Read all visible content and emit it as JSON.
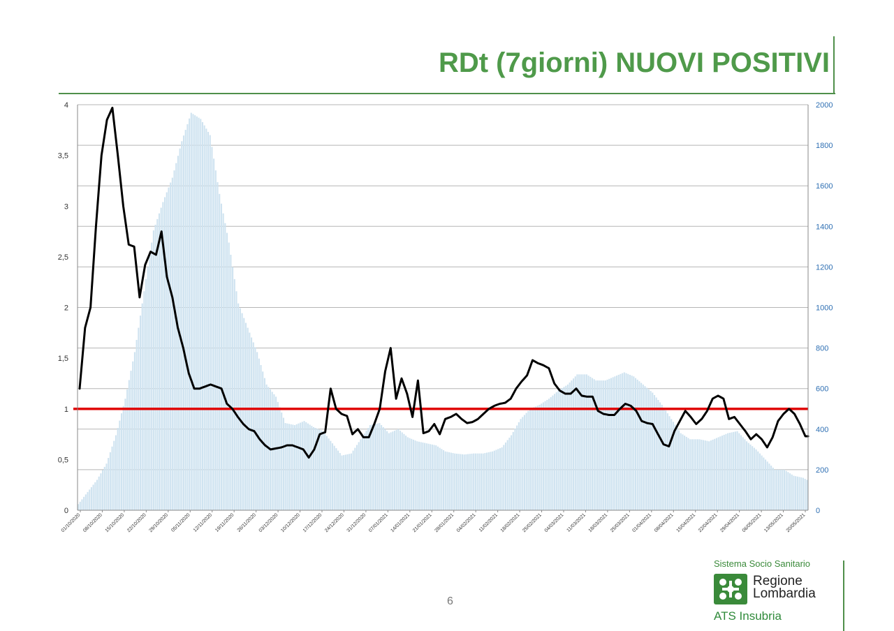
{
  "title": "RDt (7giorni) NUOVI POSITIVI",
  "page_number": "6",
  "logo": {
    "org": "Sistema Socio Sanitario",
    "region_line1": "Regione",
    "region_line2": "Lombardia",
    "ats": "ATS Insubria",
    "mark_color": "#3a8a3a"
  },
  "chart_data": {
    "type": "bar+line",
    "title": "",
    "grid": true,
    "left_axis": {
      "ylim": [
        0,
        4
      ],
      "ticks": [
        "0",
        "0,5",
        "1",
        "1,5",
        "2",
        "2,5",
        "3",
        "3,5",
        "4"
      ]
    },
    "right_axis": {
      "ylim": [
        0,
        2000
      ],
      "ticks": [
        "0",
        "200",
        "400",
        "600",
        "800",
        "1000",
        "1200",
        "1400",
        "1600",
        "1800",
        "2000"
      ]
    },
    "x_tick_labels": [
      "01/10/2020",
      "08/10/2020",
      "15/10/2020",
      "22/10/2020",
      "29/10/2020",
      "05/11/2020",
      "12/11/2020",
      "19/11/2020",
      "26/11/2020",
      "03/12/2020",
      "10/12/2020",
      "17/12/2020",
      "24/12/2020",
      "31/12/2020",
      "07/01/2021",
      "14/01/2021",
      "21/01/2021",
      "28/01/2021",
      "04/02/2021",
      "11/02/2021",
      "18/02/2021",
      "25/02/2021",
      "04/03/2021",
      "11/03/2021",
      "18/03/2021",
      "25/03/2021",
      "01/04/2021",
      "08/04/2021",
      "15/04/2021",
      "22/04/2021",
      "29/04/2021",
      "06/05/2021",
      "13/05/2021",
      "20/05/2021"
    ],
    "reference_line": {
      "value": 1,
      "axis": "left",
      "color": "#e00000"
    },
    "bar_series": {
      "axis": "right",
      "color": "#cfe3f0",
      "anchors": [
        [
          0,
          30
        ],
        [
          5,
          90
        ],
        [
          10,
          150
        ],
        [
          15,
          230
        ],
        [
          20,
          370
        ],
        [
          25,
          550
        ],
        [
          30,
          780
        ],
        [
          35,
          1080
        ],
        [
          40,
          1380
        ],
        [
          45,
          1520
        ],
        [
          50,
          1640
        ],
        [
          55,
          1820
        ],
        [
          60,
          1960
        ],
        [
          65,
          1930
        ],
        [
          70,
          1850
        ],
        [
          75,
          1560
        ],
        [
          80,
          1320
        ],
        [
          85,
          1020
        ],
        [
          90,
          900
        ],
        [
          95,
          780
        ],
        [
          100,
          620
        ],
        [
          105,
          560
        ],
        [
          110,
          430
        ],
        [
          115,
          420
        ],
        [
          120,
          440
        ],
        [
          125,
          410
        ],
        [
          130,
          390
        ],
        [
          135,
          330
        ],
        [
          140,
          270
        ],
        [
          145,
          280
        ],
        [
          150,
          350
        ],
        [
          155,
          420
        ],
        [
          160,
          430
        ],
        [
          165,
          380
        ],
        [
          170,
          400
        ],
        [
          175,
          360
        ],
        [
          180,
          340
        ],
        [
          185,
          330
        ],
        [
          190,
          320
        ],
        [
          195,
          290
        ],
        [
          200,
          280
        ],
        [
          205,
          275
        ],
        [
          210,
          280
        ],
        [
          215,
          280
        ],
        [
          220,
          290
        ],
        [
          225,
          310
        ],
        [
          230,
          370
        ],
        [
          235,
          450
        ],
        [
          240,
          500
        ],
        [
          245,
          520
        ],
        [
          250,
          550
        ],
        [
          255,
          590
        ],
        [
          260,
          620
        ],
        [
          265,
          670
        ],
        [
          270,
          670
        ],
        [
          275,
          640
        ],
        [
          280,
          640
        ],
        [
          285,
          660
        ],
        [
          290,
          680
        ],
        [
          295,
          660
        ],
        [
          300,
          620
        ],
        [
          305,
          580
        ],
        [
          310,
          520
        ],
        [
          315,
          450
        ],
        [
          320,
          380
        ],
        [
          325,
          350
        ],
        [
          330,
          350
        ],
        [
          335,
          340
        ],
        [
          340,
          360
        ],
        [
          345,
          380
        ],
        [
          350,
          390
        ],
        [
          355,
          340
        ],
        [
          360,
          300
        ],
        [
          365,
          250
        ],
        [
          370,
          200
        ],
        [
          375,
          200
        ],
        [
          380,
          170
        ],
        [
          385,
          160
        ],
        [
          387,
          150
        ]
      ]
    },
    "line_series": {
      "axis": "left",
      "color": "#000000",
      "anchors": [
        [
          0,
          1.2
        ],
        [
          2,
          1.8
        ],
        [
          4,
          2.0
        ],
        [
          6,
          2.8
        ],
        [
          8,
          3.5
        ],
        [
          10,
          3.85
        ],
        [
          12,
          3.97
        ],
        [
          14,
          3.5
        ],
        [
          16,
          3.0
        ],
        [
          18,
          2.62
        ],
        [
          20,
          2.6
        ],
        [
          22,
          2.1
        ],
        [
          24,
          2.42
        ],
        [
          26,
          2.55
        ],
        [
          28,
          2.52
        ],
        [
          30,
          2.75
        ],
        [
          32,
          2.3
        ],
        [
          34,
          2.1
        ],
        [
          36,
          1.8
        ],
        [
          38,
          1.6
        ],
        [
          40,
          1.35
        ],
        [
          42,
          1.2
        ],
        [
          44,
          1.2
        ],
        [
          46,
          1.22
        ],
        [
          48,
          1.24
        ],
        [
          50,
          1.22
        ],
        [
          52,
          1.2
        ],
        [
          54,
          1.05
        ],
        [
          56,
          1.0
        ],
        [
          58,
          0.92
        ],
        [
          60,
          0.85
        ],
        [
          62,
          0.8
        ],
        [
          64,
          0.78
        ],
        [
          66,
          0.7
        ],
        [
          68,
          0.64
        ],
        [
          70,
          0.6
        ],
        [
          72,
          0.61
        ],
        [
          74,
          0.62
        ],
        [
          76,
          0.64
        ],
        [
          78,
          0.64
        ],
        [
          80,
          0.62
        ],
        [
          82,
          0.6
        ],
        [
          84,
          0.52
        ],
        [
          86,
          0.6
        ],
        [
          88,
          0.75
        ],
        [
          90,
          0.77
        ],
        [
          92,
          1.2
        ],
        [
          94,
          1.0
        ],
        [
          96,
          0.95
        ],
        [
          98,
          0.93
        ],
        [
          100,
          0.75
        ],
        [
          102,
          0.8
        ],
        [
          104,
          0.72
        ],
        [
          106,
          0.72
        ],
        [
          108,
          0.85
        ],
        [
          110,
          1.0
        ],
        [
          112,
          1.37
        ],
        [
          114,
          1.6
        ],
        [
          116,
          1.1
        ],
        [
          118,
          1.3
        ],
        [
          120,
          1.15
        ],
        [
          122,
          0.92
        ],
        [
          124,
          1.28
        ],
        [
          126,
          0.76
        ],
        [
          128,
          0.78
        ],
        [
          130,
          0.85
        ],
        [
          132,
          0.75
        ],
        [
          134,
          0.9
        ],
        [
          136,
          0.92
        ],
        [
          138,
          0.95
        ],
        [
          140,
          0.9
        ],
        [
          142,
          0.86
        ],
        [
          144,
          0.87
        ],
        [
          146,
          0.9
        ],
        [
          148,
          0.95
        ],
        [
          150,
          1.0
        ],
        [
          152,
          1.03
        ],
        [
          154,
          1.05
        ],
        [
          156,
          1.06
        ],
        [
          158,
          1.1
        ],
        [
          160,
          1.2
        ],
        [
          162,
          1.27
        ],
        [
          164,
          1.33
        ],
        [
          166,
          1.48
        ],
        [
          168,
          1.45
        ],
        [
          170,
          1.43
        ],
        [
          172,
          1.4
        ],
        [
          174,
          1.25
        ],
        [
          176,
          1.18
        ],
        [
          178,
          1.15
        ],
        [
          180,
          1.15
        ],
        [
          182,
          1.2
        ],
        [
          184,
          1.13
        ],
        [
          186,
          1.12
        ],
        [
          188,
          1.12
        ],
        [
          190,
          0.98
        ],
        [
          192,
          0.95
        ],
        [
          194,
          0.94
        ],
        [
          196,
          0.94
        ],
        [
          198,
          1.0
        ],
        [
          200,
          1.05
        ],
        [
          202,
          1.03
        ],
        [
          204,
          0.98
        ],
        [
          206,
          0.88
        ],
        [
          208,
          0.86
        ],
        [
          210,
          0.85
        ],
        [
          212,
          0.75
        ],
        [
          214,
          0.65
        ],
        [
          216,
          0.63
        ],
        [
          218,
          0.78
        ],
        [
          220,
          0.88
        ],
        [
          222,
          0.98
        ],
        [
          224,
          0.92
        ],
        [
          226,
          0.85
        ],
        [
          228,
          0.9
        ],
        [
          230,
          0.98
        ],
        [
          232,
          1.1
        ],
        [
          234,
          1.13
        ],
        [
          236,
          1.1
        ],
        [
          238,
          0.9
        ],
        [
          240,
          0.92
        ],
        [
          242,
          0.85
        ],
        [
          244,
          0.78
        ],
        [
          246,
          0.7
        ],
        [
          248,
          0.75
        ],
        [
          250,
          0.7
        ],
        [
          252,
          0.62
        ],
        [
          254,
          0.72
        ],
        [
          256,
          0.88
        ],
        [
          258,
          0.95
        ],
        [
          260,
          1.0
        ],
        [
          262,
          0.95
        ],
        [
          264,
          0.85
        ],
        [
          266,
          0.73
        ],
        [
          267,
          0.73
        ]
      ]
    }
  }
}
